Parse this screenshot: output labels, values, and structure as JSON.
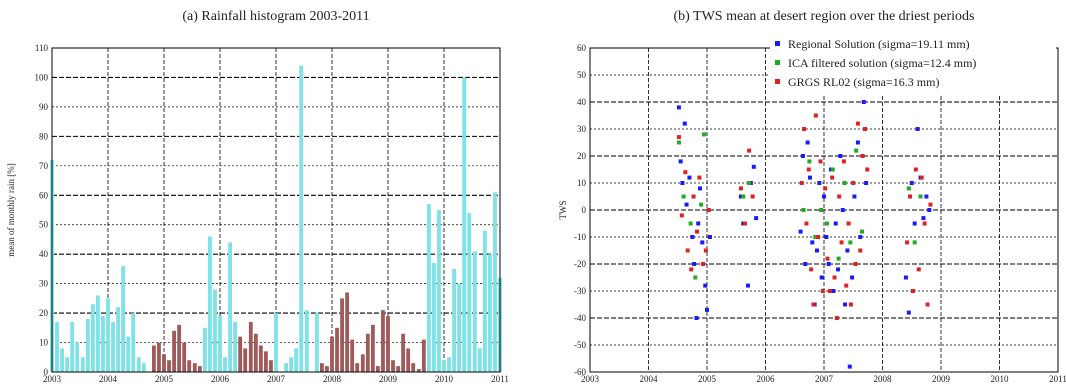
{
  "chart_data": [
    {
      "type": "bar",
      "title": "(a) Rainfall histogram 2003-2011",
      "xlabel": "",
      "ylabel": "mean of monthly rain [%]",
      "xlim": [
        2003,
        2011
      ],
      "ylim": [
        0,
        110
      ],
      "xticks": [
        "2003",
        "2004",
        "2005",
        "2006",
        "2007",
        "2008",
        "2009",
        "2010",
        "2011"
      ],
      "yticks": [
        "0",
        "10",
        "20",
        "30",
        "40",
        "50",
        "60",
        "70",
        "80",
        "90",
        "100",
        "110"
      ],
      "grid": true,
      "colors": {
        "wet": "#7de3e6",
        "dry": "#a05a5a"
      },
      "bars": [
        {
          "x": 2003.0,
          "v": 72,
          "c": "wet"
        },
        {
          "x": 2003.09,
          "v": 17,
          "c": "wet"
        },
        {
          "x": 2003.18,
          "v": 8,
          "c": "wet"
        },
        {
          "x": 2003.27,
          "v": 5,
          "c": "wet"
        },
        {
          "x": 2003.36,
          "v": 17,
          "c": "wet"
        },
        {
          "x": 2003.45,
          "v": 10,
          "c": "wet"
        },
        {
          "x": 2003.55,
          "v": 5,
          "c": "wet"
        },
        {
          "x": 2003.64,
          "v": 18,
          "c": "wet"
        },
        {
          "x": 2003.73,
          "v": 23,
          "c": "wet"
        },
        {
          "x": 2003.82,
          "v": 26,
          "c": "wet"
        },
        {
          "x": 2003.91,
          "v": 19,
          "c": "wet"
        },
        {
          "x": 2004.0,
          "v": 25,
          "c": "wet"
        },
        {
          "x": 2004.09,
          "v": 17,
          "c": "wet"
        },
        {
          "x": 2004.18,
          "v": 22,
          "c": "wet"
        },
        {
          "x": 2004.27,
          "v": 36,
          "c": "wet"
        },
        {
          "x": 2004.36,
          "v": 12,
          "c": "wet"
        },
        {
          "x": 2004.45,
          "v": 20,
          "c": "wet"
        },
        {
          "x": 2004.55,
          "v": 5,
          "c": "wet"
        },
        {
          "x": 2004.64,
          "v": 3,
          "c": "wet"
        },
        {
          "x": 2004.82,
          "v": 9,
          "c": "dry"
        },
        {
          "x": 2004.91,
          "v": 10,
          "c": "dry"
        },
        {
          "x": 2005.0,
          "v": 6,
          "c": "dry"
        },
        {
          "x": 2005.09,
          "v": 4,
          "c": "dry"
        },
        {
          "x": 2005.18,
          "v": 14,
          "c": "dry"
        },
        {
          "x": 2005.27,
          "v": 16,
          "c": "dry"
        },
        {
          "x": 2005.36,
          "v": 10,
          "c": "dry"
        },
        {
          "x": 2005.45,
          "v": 4,
          "c": "dry"
        },
        {
          "x": 2005.55,
          "v": 3,
          "c": "dry"
        },
        {
          "x": 2005.64,
          "v": 2,
          "c": "dry"
        },
        {
          "x": 2005.73,
          "v": 15,
          "c": "wet"
        },
        {
          "x": 2005.82,
          "v": 46,
          "c": "wet"
        },
        {
          "x": 2005.91,
          "v": 28,
          "c": "wet"
        },
        {
          "x": 2006.0,
          "v": 19,
          "c": "wet"
        },
        {
          "x": 2006.09,
          "v": 5,
          "c": "wet"
        },
        {
          "x": 2006.18,
          "v": 44,
          "c": "wet"
        },
        {
          "x": 2006.27,
          "v": 17,
          "c": "wet"
        },
        {
          "x": 2006.36,
          "v": 12,
          "c": "dry"
        },
        {
          "x": 2006.45,
          "v": 8,
          "c": "dry"
        },
        {
          "x": 2006.55,
          "v": 17,
          "c": "dry"
        },
        {
          "x": 2006.64,
          "v": 13,
          "c": "dry"
        },
        {
          "x": 2006.73,
          "v": 9,
          "c": "dry"
        },
        {
          "x": 2006.82,
          "v": 7,
          "c": "dry"
        },
        {
          "x": 2006.91,
          "v": 4,
          "c": "dry"
        },
        {
          "x": 2007.0,
          "v": 20,
          "c": "wet"
        },
        {
          "x": 2007.18,
          "v": 3,
          "c": "wet"
        },
        {
          "x": 2007.27,
          "v": 5,
          "c": "wet"
        },
        {
          "x": 2007.36,
          "v": 8,
          "c": "wet"
        },
        {
          "x": 2007.45,
          "v": 104,
          "c": "wet"
        },
        {
          "x": 2007.55,
          "v": 21,
          "c": "wet"
        },
        {
          "x": 2007.73,
          "v": 20,
          "c": "wet"
        },
        {
          "x": 2007.82,
          "v": 3,
          "c": "dry"
        },
        {
          "x": 2007.91,
          "v": 2,
          "c": "dry"
        },
        {
          "x": 2008.0,
          "v": 12,
          "c": "dry"
        },
        {
          "x": 2008.09,
          "v": 15,
          "c": "dry"
        },
        {
          "x": 2008.18,
          "v": 25,
          "c": "dry"
        },
        {
          "x": 2008.27,
          "v": 27,
          "c": "dry"
        },
        {
          "x": 2008.36,
          "v": 11,
          "c": "dry"
        },
        {
          "x": 2008.45,
          "v": 3,
          "c": "dry"
        },
        {
          "x": 2008.55,
          "v": 6,
          "c": "dry"
        },
        {
          "x": 2008.64,
          "v": 13,
          "c": "dry"
        },
        {
          "x": 2008.73,
          "v": 16,
          "c": "dry"
        },
        {
          "x": 2008.82,
          "v": 2,
          "c": "dry"
        },
        {
          "x": 2008.91,
          "v": 21,
          "c": "dry"
        },
        {
          "x": 2009.0,
          "v": 19,
          "c": "dry"
        },
        {
          "x": 2009.09,
          "v": 4,
          "c": "dry"
        },
        {
          "x": 2009.18,
          "v": 2,
          "c": "dry"
        },
        {
          "x": 2009.27,
          "v": 13,
          "c": "dry"
        },
        {
          "x": 2009.36,
          "v": 8,
          "c": "dry"
        },
        {
          "x": 2009.45,
          "v": 3,
          "c": "dry"
        },
        {
          "x": 2009.55,
          "v": 1,
          "c": "dry"
        },
        {
          "x": 2009.64,
          "v": 11,
          "c": "dry"
        },
        {
          "x": 2009.73,
          "v": 57,
          "c": "wet"
        },
        {
          "x": 2009.82,
          "v": 37,
          "c": "wet"
        },
        {
          "x": 2009.91,
          "v": 55,
          "c": "wet"
        },
        {
          "x": 2010.0,
          "v": 4,
          "c": "wet"
        },
        {
          "x": 2010.09,
          "v": 5,
          "c": "wet"
        },
        {
          "x": 2010.18,
          "v": 35,
          "c": "wet"
        },
        {
          "x": 2010.27,
          "v": 30,
          "c": "wet"
        },
        {
          "x": 2010.36,
          "v": 100,
          "c": "wet"
        },
        {
          "x": 2010.45,
          "v": 54,
          "c": "wet"
        },
        {
          "x": 2010.55,
          "v": 41,
          "c": "wet"
        },
        {
          "x": 2010.64,
          "v": 8,
          "c": "wet"
        },
        {
          "x": 2010.73,
          "v": 48,
          "c": "wet"
        },
        {
          "x": 2010.82,
          "v": 40,
          "c": "wet"
        },
        {
          "x": 2010.91,
          "v": 61,
          "c": "wet"
        },
        {
          "x": 2011.0,
          "v": 32,
          "c": "wet"
        }
      ]
    },
    {
      "type": "scatter",
      "title": "(b) TWS mean at desert region over the driest periods",
      "xlabel": "",
      "ylabel": "TWS",
      "xlim": [
        2003,
        2011
      ],
      "ylim": [
        -60,
        60
      ],
      "xticks": [
        "2003",
        "2004",
        "2005",
        "2006",
        "2007",
        "2008",
        "2009",
        "2010",
        "2011"
      ],
      "yticks": [
        "-60",
        "-50",
        "-40",
        "-30",
        "-20",
        "-10",
        "0",
        "10",
        "20",
        "30",
        "40",
        "50",
        "60"
      ],
      "grid": true,
      "legend_position": "top-right",
      "series": [
        {
          "name": "Regional Solution (sigma=19.11 mm)",
          "color": "#1a1aff",
          "points": [
            [
              2004.52,
              38
            ],
            [
              2004.55,
              18
            ],
            [
              2004.58,
              10
            ],
            [
              2004.62,
              32
            ],
            [
              2004.65,
              2
            ],
            [
              2004.7,
              12
            ],
            [
              2004.75,
              -10
            ],
            [
              2004.78,
              -20
            ],
            [
              2004.82,
              -40
            ],
            [
              2004.85,
              -5
            ],
            [
              2004.88,
              8
            ],
            [
              2004.92,
              -12
            ],
            [
              2004.97,
              -28
            ],
            [
              2005.0,
              -37
            ],
            [
              2005.05,
              -10
            ],
            [
              2005.58,
              5
            ],
            [
              2005.62,
              -5
            ],
            [
              2005.7,
              -28
            ],
            [
              2005.75,
              10
            ],
            [
              2005.8,
              16
            ],
            [
              2005.84,
              -3
            ],
            [
              2006.6,
              -8
            ],
            [
              2006.64,
              20
            ],
            [
              2006.68,
              -20
            ],
            [
              2006.72,
              25
            ],
            [
              2006.76,
              12
            ],
            [
              2006.8,
              -12
            ],
            [
              2006.84,
              -35
            ],
            [
              2006.88,
              -15
            ],
            [
              2006.92,
              10
            ],
            [
              2006.96,
              -25
            ],
            [
              2007.0,
              5
            ],
            [
              2007.04,
              -10
            ],
            [
              2007.08,
              -20
            ],
            [
              2007.12,
              15
            ],
            [
              2007.16,
              -30
            ],
            [
              2007.2,
              -5
            ],
            [
              2007.24,
              -22
            ],
            [
              2007.28,
              20
            ],
            [
              2007.32,
              0
            ],
            [
              2007.36,
              -35
            ],
            [
              2007.4,
              -15
            ],
            [
              2007.44,
              -58
            ],
            [
              2007.48,
              -25
            ],
            [
              2007.52,
              5
            ],
            [
              2007.58,
              25
            ],
            [
              2007.62,
              -10
            ],
            [
              2007.68,
              40
            ],
            [
              2007.72,
              10
            ],
            [
              2008.4,
              -25
            ],
            [
              2008.45,
              -38
            ],
            [
              2008.5,
              10
            ],
            [
              2008.55,
              -5
            ],
            [
              2008.6,
              30
            ],
            [
              2008.65,
              12
            ],
            [
              2008.7,
              -3
            ],
            [
              2008.75,
              5
            ],
            [
              2008.8,
              0
            ]
          ]
        },
        {
          "name": "ICA filtered solution (sigma=12.4 mm)",
          "color": "#22aa22",
          "points": [
            [
              2004.52,
              25
            ],
            [
              2004.6,
              5
            ],
            [
              2004.72,
              -5
            ],
            [
              2004.8,
              -25
            ],
            [
              2004.9,
              2
            ],
            [
              2004.95,
              28
            ],
            [
              2005.62,
              5
            ],
            [
              2005.72,
              10
            ],
            [
              2006.65,
              0
            ],
            [
              2006.75,
              18
            ],
            [
              2006.85,
              -10
            ],
            [
              2006.95,
              0
            ],
            [
              2007.05,
              -5
            ],
            [
              2007.15,
              15
            ],
            [
              2007.25,
              -18
            ],
            [
              2007.35,
              10
            ],
            [
              2007.45,
              -12
            ],
            [
              2007.55,
              22
            ],
            [
              2007.65,
              -8
            ],
            [
              2008.45,
              8
            ],
            [
              2008.55,
              -12
            ],
            [
              2008.65,
              5
            ]
          ]
        },
        {
          "name": "GRGS RL02 (sigma=16.3 mm)",
          "color": "#dd2222",
          "points": [
            [
              2004.52,
              27
            ],
            [
              2004.57,
              -2
            ],
            [
              2004.63,
              14
            ],
            [
              2004.67,
              -15
            ],
            [
              2004.73,
              -22
            ],
            [
              2004.77,
              5
            ],
            [
              2004.83,
              -8
            ],
            [
              2004.87,
              12
            ],
            [
              2004.93,
              -20
            ],
            [
              2004.98,
              -15
            ],
            [
              2005.03,
              0
            ],
            [
              2005.58,
              8
            ],
            [
              2005.65,
              -5
            ],
            [
              2005.72,
              22
            ],
            [
              2005.78,
              5
            ],
            [
              2006.62,
              10
            ],
            [
              2006.66,
              30
            ],
            [
              2006.7,
              -5
            ],
            [
              2006.74,
              15
            ],
            [
              2006.78,
              -22
            ],
            [
              2006.82,
              -35
            ],
            [
              2006.86,
              35
            ],
            [
              2006.9,
              -10
            ],
            [
              2006.94,
              18
            ],
            [
              2006.98,
              -30
            ],
            [
              2007.02,
              8
            ],
            [
              2007.06,
              -18
            ],
            [
              2007.1,
              -30
            ],
            [
              2007.14,
              12
            ],
            [
              2007.18,
              -25
            ],
            [
              2007.22,
              -40
            ],
            [
              2007.26,
              5
            ],
            [
              2007.3,
              -12
            ],
            [
              2007.34,
              18
            ],
            [
              2007.38,
              -28
            ],
            [
              2007.42,
              -5
            ],
            [
              2007.46,
              -35
            ],
            [
              2007.5,
              10
            ],
            [
              2007.54,
              -20
            ],
            [
              2007.58,
              32
            ],
            [
              2007.62,
              -15
            ],
            [
              2007.66,
              20
            ],
            [
              2007.7,
              30
            ],
            [
              2007.74,
              15
            ],
            [
              2008.42,
              -12
            ],
            [
              2008.47,
              5
            ],
            [
              2008.52,
              -30
            ],
            [
              2008.57,
              15
            ],
            [
              2008.62,
              -22
            ],
            [
              2008.67,
              12
            ],
            [
              2008.72,
              -5
            ],
            [
              2008.77,
              -35
            ],
            [
              2008.82,
              2
            ]
          ]
        }
      ]
    }
  ]
}
